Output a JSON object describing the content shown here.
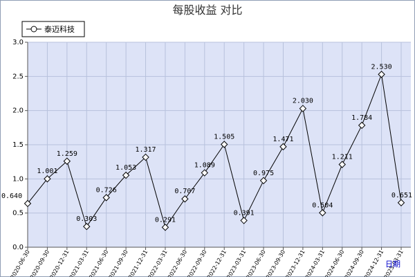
{
  "chart_data": {
    "type": "line",
    "title": "每股收益  对比",
    "xlabel": "日期",
    "ylabel": "",
    "ylim": [
      0,
      3.0
    ],
    "yticks": [
      "0.0",
      "0.5",
      "1.0",
      "1.5",
      "2.0",
      "2.5",
      "3.0"
    ],
    "legend_position": "top-left",
    "grid": true,
    "categories": [
      "2020-06-30",
      "2020-09-30",
      "2020-12-31",
      "2021-03-31",
      "2021-06-30",
      "2021-09-30",
      "2021-12-31",
      "2022-03-31",
      "2022-06-30",
      "2022-09-30",
      "2022-12-31",
      "2023-03-31",
      "2023-06-30",
      "2023-09-30",
      "2023-12-31",
      "2024-03-31",
      "2024-06-30",
      "2024-09-30",
      "2024-12-31",
      "2025-03-31"
    ],
    "series": [
      {
        "name": "泰迈科技",
        "values": [
          0.64,
          1.001,
          1.259,
          0.303,
          0.726,
          1.053,
          1.317,
          0.291,
          0.707,
          1.089,
          1.505,
          0.391,
          0.975,
          1.471,
          2.03,
          0.504,
          1.211,
          1.784,
          2.53,
          0.651
        ],
        "labels": [
          "0.640",
          "1.001",
          "1.259",
          "0.303",
          "0.726",
          "1.053",
          "1.317",
          "0.291",
          "0.707",
          "1.089",
          "1.505",
          "0.391",
          "0.975",
          "1.471",
          "2.030",
          "0.504",
          "1.211",
          "1.784",
          "2.530",
          "0.651"
        ]
      }
    ]
  },
  "colors": {
    "plot_bg": "#dde3f7",
    "grid": "#b7c1dc",
    "line": "#000000",
    "axis": "#555555"
  }
}
